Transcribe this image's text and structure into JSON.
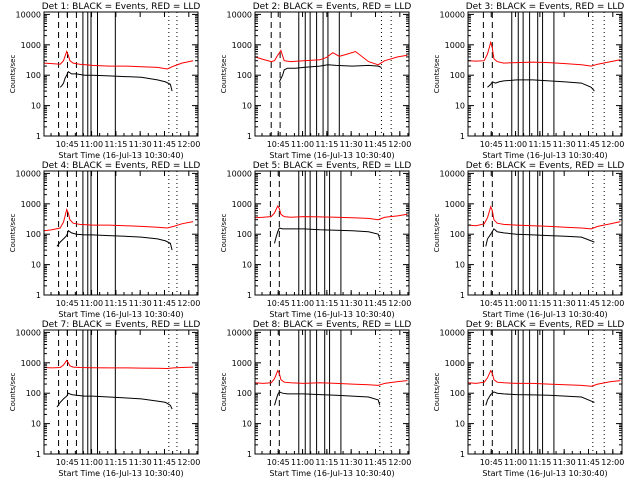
{
  "colors": {
    "events": "#000000",
    "lld": "#ff0000",
    "background": "#ffffff",
    "axis": "#000000"
  },
  "common": {
    "xlabel": "Start Time (16-Jul-13 10:30:40)",
    "ylabel": "Counts/sec",
    "xticks": [
      "10:45",
      "11:00",
      "11:15",
      "11:30",
      "11:45",
      "12:00"
    ],
    "yticks": [
      "1",
      "10",
      "100",
      "1000",
      "10000"
    ]
  },
  "chart_data": [
    {
      "type": "line",
      "title": "Det 1: BLACK = Events, RED = LLD",
      "xlim_minutes": [
        0,
        95
      ],
      "ylim": [
        1,
        12000
      ],
      "yscale": "log",
      "xtick_minutes": [
        14.33,
        29.33,
        44.33,
        59.33,
        74.33,
        89.33
      ],
      "vlines_dashed_minutes": [
        9,
        14.5,
        20
      ],
      "vlines_solid_minutes": [
        24,
        27,
        29,
        33,
        44
      ],
      "vlines_dotted_minutes": [
        77,
        82
      ],
      "series": [
        {
          "name": "Events",
          "x": [
            10,
            11,
            12,
            13,
            14,
            15,
            17,
            20,
            25,
            30,
            40,
            50,
            60,
            70,
            75,
            78,
            79
          ],
          "y": [
            40,
            45,
            55,
            80,
            100,
            130,
            110,
            110,
            100,
            100,
            95,
            90,
            85,
            70,
            60,
            50,
            30
          ]
        },
        {
          "name": "LLD",
          "x": [
            0,
            5,
            10,
            12,
            14,
            15,
            16,
            18,
            22,
            30,
            40,
            50,
            60,
            70,
            76,
            80,
            85,
            92
          ],
          "y": [
            250,
            240,
            230,
            300,
            600,
            450,
            300,
            250,
            230,
            210,
            200,
            200,
            190,
            180,
            160,
            200,
            250,
            300
          ]
        }
      ]
    },
    {
      "type": "line",
      "title": "Det 2: BLACK = Events, RED = LLD",
      "xlim_minutes": [
        0,
        95
      ],
      "ylim": [
        1,
        12000
      ],
      "yscale": "log",
      "xtick_minutes": [
        14.33,
        29.33,
        44.33,
        59.33,
        74.33,
        89.33
      ],
      "vlines_dashed_minutes": [
        10,
        15.5
      ],
      "vlines_solid_minutes": [
        27,
        31,
        34,
        38,
        42,
        45,
        52
      ],
      "vlines_dotted_minutes": [
        78,
        84
      ],
      "series": [
        {
          "name": "Events",
          "x": [
            15,
            17,
            18,
            20,
            25,
            30,
            40,
            45,
            50,
            60,
            70,
            76,
            78
          ],
          "y": [
            60,
            100,
            150,
            170,
            170,
            180,
            200,
            220,
            210,
            200,
            210,
            200,
            180
          ]
        },
        {
          "name": "LLD",
          "x": [
            0,
            5,
            10,
            12,
            14,
            16,
            18,
            22,
            30,
            40,
            44,
            48,
            52,
            56,
            62,
            70,
            76,
            80,
            88,
            94
          ],
          "y": [
            400,
            330,
            280,
            300,
            450,
            650,
            300,
            280,
            300,
            320,
            380,
            550,
            420,
            480,
            600,
            280,
            220,
            300,
            400,
            450
          ]
        }
      ]
    },
    {
      "type": "line",
      "title": "Det 3: BLACK = Events, RED = LLD",
      "xlim_minutes": [
        0,
        95
      ],
      "ylim": [
        1,
        12000
      ],
      "yscale": "log",
      "xtick_minutes": [
        14.33,
        29.33,
        44.33,
        59.33,
        74.33,
        89.33
      ],
      "vlines_dashed_minutes": [
        9.5,
        15
      ],
      "vlines_solid_minutes": [
        27,
        31,
        34,
        38,
        43,
        46,
        53
      ],
      "vlines_dotted_minutes": [
        77,
        84
      ],
      "series": [
        {
          "name": "Events",
          "x": [
            12,
            14,
            15,
            17,
            19,
            22,
            30,
            40,
            50,
            60,
            70,
            76,
            78
          ],
          "y": [
            40,
            50,
            60,
            55,
            60,
            65,
            70,
            70,
            65,
            60,
            55,
            40,
            30
          ]
        },
        {
          "name": "LLD",
          "x": [
            0,
            5,
            10,
            12,
            14,
            15,
            16,
            18,
            22,
            30,
            40,
            50,
            60,
            70,
            76,
            80,
            88,
            94
          ],
          "y": [
            300,
            290,
            300,
            500,
            1200,
            800,
            350,
            280,
            250,
            260,
            270,
            260,
            240,
            220,
            200,
            230,
            280,
            320
          ]
        }
      ]
    },
    {
      "type": "line",
      "title": "Det 4: BLACK = Events, RED = LLD",
      "xlim_minutes": [
        0,
        95
      ],
      "ylim": [
        1,
        12000
      ],
      "yscale": "log",
      "xtick_minutes": [
        14.33,
        29.33,
        44.33,
        59.33,
        74.33,
        89.33
      ],
      "vlines_dashed_minutes": [
        9,
        14.5,
        20
      ],
      "vlines_solid_minutes": [
        24,
        27,
        29,
        33,
        44
      ],
      "vlines_dotted_minutes": [
        77,
        82
      ],
      "series": [
        {
          "name": "Events",
          "x": [
            8,
            10,
            12,
            14,
            15,
            17,
            20,
            25,
            30,
            40,
            50,
            60,
            70,
            75,
            78,
            79
          ],
          "y": [
            40,
            55,
            70,
            90,
            130,
            110,
            100,
            95,
            95,
            90,
            85,
            80,
            70,
            60,
            50,
            30
          ]
        },
        {
          "name": "LLD",
          "x": [
            0,
            5,
            10,
            12,
            14,
            15,
            16,
            18,
            22,
            30,
            40,
            50,
            60,
            70,
            76,
            80,
            85,
            92
          ],
          "y": [
            130,
            140,
            160,
            250,
            650,
            500,
            300,
            230,
            210,
            200,
            200,
            190,
            180,
            170,
            160,
            180,
            220,
            260
          ]
        }
      ]
    },
    {
      "type": "line",
      "title": "Det 5: BLACK = Events, RED = LLD",
      "xlim_minutes": [
        0,
        95
      ],
      "ylim": [
        1,
        12000
      ],
      "yscale": "log",
      "xtick_minutes": [
        14.33,
        29.33,
        44.33,
        59.33,
        74.33,
        89.33
      ],
      "vlines_dashed_minutes": [
        9.5,
        15
      ],
      "vlines_solid_minutes": [
        27,
        31,
        34,
        38,
        43,
        46,
        53
      ],
      "vlines_dotted_minutes": [
        77,
        84
      ],
      "series": [
        {
          "name": "Events",
          "x": [
            12,
            13,
            14,
            15,
            17,
            20,
            30,
            40,
            50,
            60,
            70,
            76,
            77
          ],
          "y": [
            50,
            80,
            120,
            160,
            150,
            150,
            150,
            140,
            135,
            130,
            120,
            100,
            70
          ]
        },
        {
          "name": "LLD",
          "x": [
            0,
            5,
            10,
            12,
            14,
            15,
            16,
            18,
            22,
            30,
            40,
            50,
            60,
            70,
            76,
            80,
            88,
            94
          ],
          "y": [
            350,
            360,
            380,
            500,
            850,
            700,
            450,
            380,
            360,
            380,
            370,
            360,
            350,
            330,
            300,
            360,
            400,
            450
          ]
        }
      ]
    },
    {
      "type": "line",
      "title": "Det 6: BLACK = Events, RED = LLD",
      "xlim_minutes": [
        0,
        95
      ],
      "ylim": [
        1,
        12000
      ],
      "yscale": "log",
      "xtick_minutes": [
        14.33,
        29.33,
        44.33,
        59.33,
        74.33,
        89.33
      ],
      "vlines_dashed_minutes": [
        9.5,
        15
      ],
      "vlines_solid_minutes": [
        27,
        31,
        34,
        38,
        43,
        46,
        53
      ],
      "vlines_dotted_minutes": [
        77,
        84
      ],
      "series": [
        {
          "name": "Events",
          "x": [
            11,
            12,
            14,
            16,
            18,
            22,
            30,
            40,
            50,
            60,
            70,
            76,
            78
          ],
          "y": [
            40,
            70,
            100,
            150,
            120,
            110,
            100,
            95,
            90,
            85,
            80,
            60,
            55
          ]
        },
        {
          "name": "LLD",
          "x": [
            0,
            5,
            10,
            12,
            14,
            15,
            16,
            18,
            22,
            30,
            40,
            50,
            60,
            70,
            76,
            80,
            88,
            94
          ],
          "y": [
            200,
            190,
            220,
            350,
            800,
            600,
            300,
            230,
            210,
            200,
            190,
            180,
            170,
            160,
            150,
            180,
            220,
            260
          ]
        }
      ]
    },
    {
      "type": "line",
      "title": "Det 7: BLACK = Events, RED = LLD",
      "xlim_minutes": [
        0,
        95
      ],
      "ylim": [
        1,
        12000
      ],
      "yscale": "log",
      "xtick_minutes": [
        14.33,
        29.33,
        44.33,
        59.33,
        74.33,
        89.33
      ],
      "vlines_dashed_minutes": [
        9,
        14.5,
        20
      ],
      "vlines_solid_minutes": [
        24,
        27,
        29,
        33,
        44
      ],
      "vlines_dotted_minutes": [
        77,
        82
      ],
      "series": [
        {
          "name": "Events",
          "x": [
            8,
            10,
            12,
            14,
            15,
            17,
            20,
            25,
            30,
            40,
            50,
            60,
            70,
            75,
            78,
            79
          ],
          "y": [
            35,
            50,
            65,
            80,
            100,
            90,
            85,
            80,
            80,
            75,
            70,
            65,
            55,
            50,
            40,
            30
          ]
        },
        {
          "name": "LLD",
          "x": [
            0,
            5,
            10,
            12,
            14,
            15,
            16,
            18,
            22,
            30,
            40,
            50,
            60,
            70,
            76,
            80,
            85,
            92
          ],
          "y": [
            700,
            680,
            700,
            850,
            1200,
            1000,
            800,
            720,
            700,
            690,
            680,
            680,
            670,
            660,
            650,
            680,
            700,
            720
          ]
        }
      ]
    },
    {
      "type": "line",
      "title": "Det 8: BLACK = Events, RED = LLD",
      "xlim_minutes": [
        0,
        95
      ],
      "ylim": [
        1,
        12000
      ],
      "yscale": "log",
      "xtick_minutes": [
        14.33,
        29.33,
        44.33,
        59.33,
        74.33,
        89.33
      ],
      "vlines_dashed_minutes": [
        9.5,
        15
      ],
      "vlines_solid_minutes": [
        27,
        31,
        34,
        38,
        43,
        46,
        53
      ],
      "vlines_dotted_minutes": [
        77,
        84
      ],
      "series": [
        {
          "name": "Events",
          "x": [
            12,
            13,
            14,
            15,
            17,
            20,
            30,
            40,
            50,
            60,
            70,
            76,
            77
          ],
          "y": [
            40,
            60,
            90,
            110,
            100,
            95,
            95,
            90,
            85,
            80,
            75,
            60,
            40
          ]
        },
        {
          "name": "LLD",
          "x": [
            0,
            5,
            10,
            12,
            14,
            15,
            16,
            18,
            22,
            30,
            40,
            50,
            60,
            70,
            76,
            80,
            88,
            94
          ],
          "y": [
            220,
            210,
            220,
            300,
            550,
            450,
            280,
            230,
            220,
            210,
            220,
            210,
            200,
            190,
            180,
            210,
            240,
            260
          ]
        }
      ]
    },
    {
      "type": "line",
      "title": "Det 9: BLACK = Events, RED = LLD",
      "xlim_minutes": [
        0,
        95
      ],
      "ylim": [
        1,
        12000
      ],
      "yscale": "log",
      "xtick_minutes": [
        14.33,
        29.33,
        44.33,
        59.33,
        74.33,
        89.33
      ],
      "vlines_dashed_minutes": [
        9.5,
        15
      ],
      "vlines_solid_minutes": [
        27,
        31,
        34,
        38,
        43,
        46,
        53
      ],
      "vlines_dotted_minutes": [
        77,
        84
      ],
      "series": [
        {
          "name": "Events",
          "x": [
            11,
            12,
            14,
            16,
            18,
            22,
            30,
            40,
            50,
            60,
            70,
            76,
            78
          ],
          "y": [
            40,
            60,
            90,
            110,
            100,
            95,
            90,
            88,
            85,
            80,
            75,
            55,
            50
          ]
        },
        {
          "name": "LLD",
          "x": [
            0,
            5,
            10,
            12,
            14,
            15,
            16,
            18,
            22,
            30,
            40,
            50,
            60,
            70,
            76,
            80,
            88,
            94
          ],
          "y": [
            220,
            210,
            230,
            320,
            550,
            450,
            280,
            230,
            220,
            210,
            210,
            200,
            190,
            180,
            170,
            200,
            240,
            260
          ]
        }
      ]
    }
  ]
}
